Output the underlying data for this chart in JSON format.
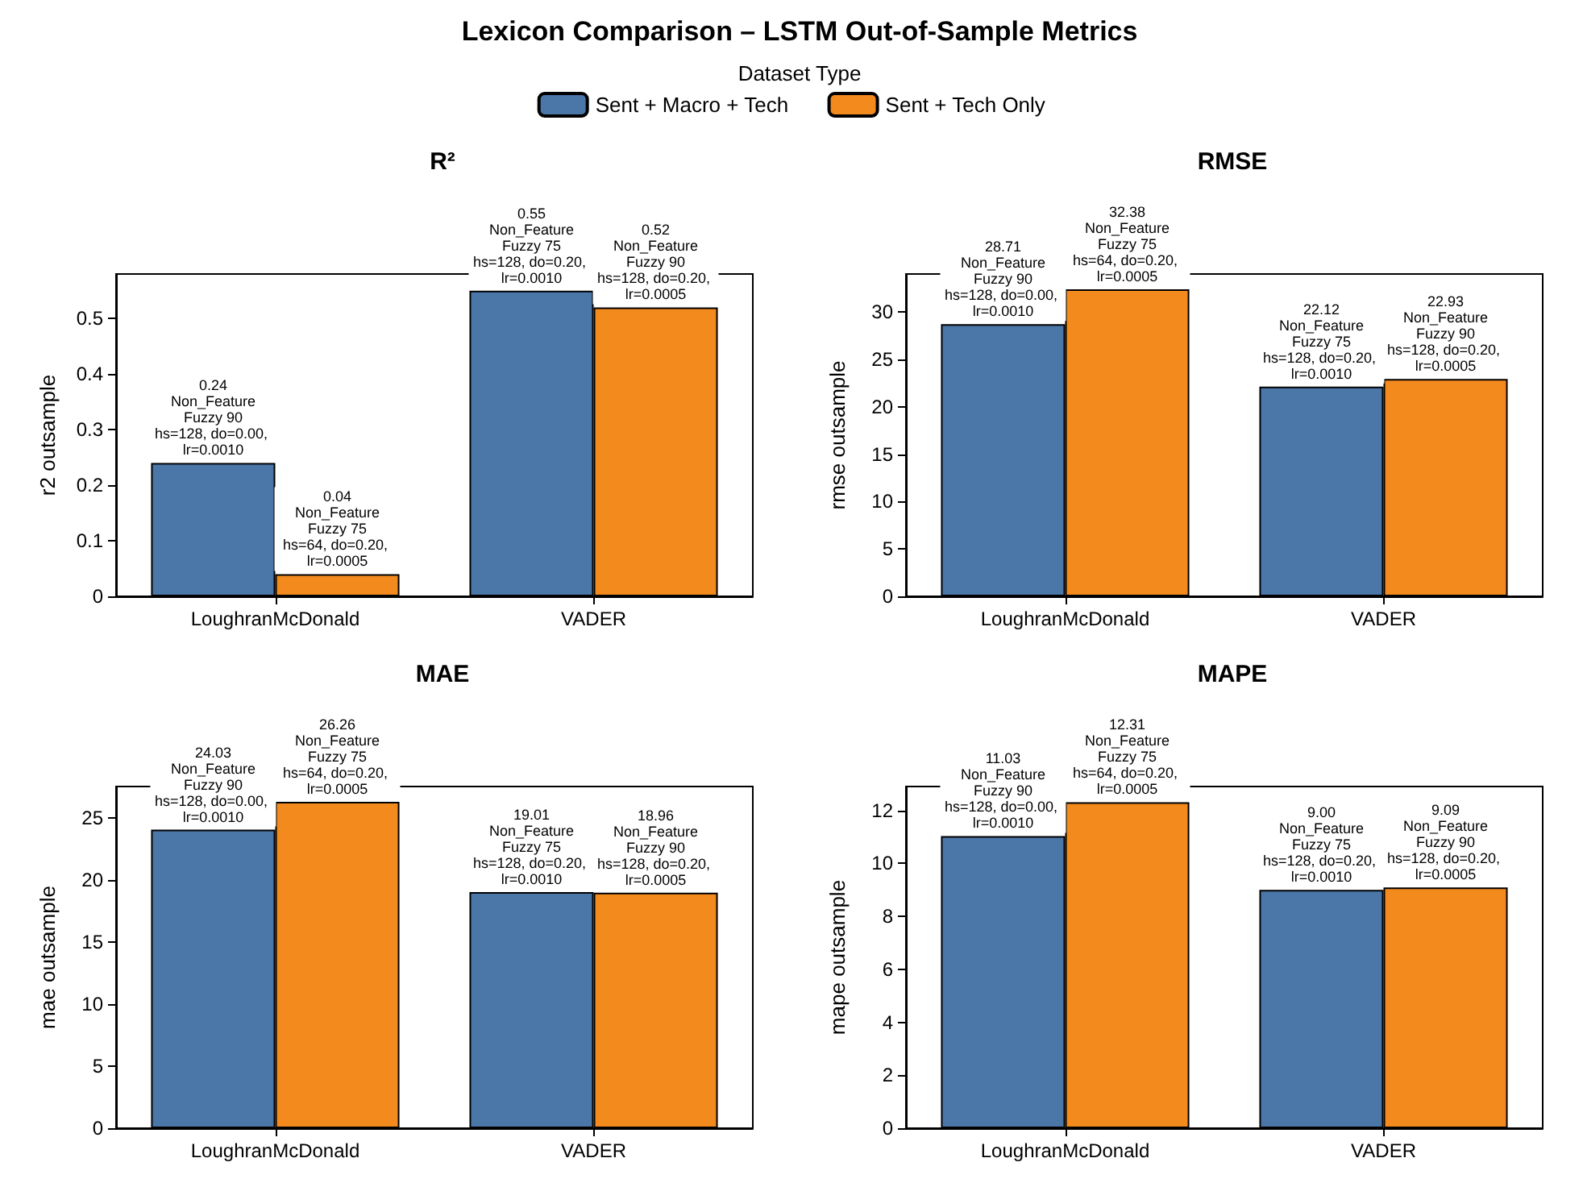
{
  "chart_data": [
    {
      "type": "bar",
      "title": "R²",
      "annotations": [
        "Lexicon Comparison – LSTM Out-of-Sample Metrics"
      ],
      "legend": "top",
      "legend_title": "Dataset Type",
      "grid": false,
      "ylabel": "r2 outsample",
      "categories": [
        "LoughranMcDonald",
        "VADER"
      ],
      "ylim": [
        0,
        0.58
      ],
      "yticks": [
        0.0,
        0.1,
        0.2,
        0.3,
        0.4,
        0.5
      ],
      "series": [
        {
          "name": "Sent + Macro + Tech",
          "color": "#4a76a8",
          "values": [
            0.24,
            0.55
          ],
          "value_labels": [
            "0.24\nNon_Feature\nFuzzy 90\nhs=128, do=0.00, lr=0.0010",
            "0.55\nNon_Feature\nFuzzy 75\nhs=128, do=0.20, lr=0.0010"
          ]
        },
        {
          "name": "Sent + Tech Only",
          "color": "#f28a1e",
          "values": [
            0.04,
            0.52
          ],
          "value_labels": [
            "0.04\nNon_Feature\nFuzzy 75\nhs=64, do=0.20, lr=0.0005",
            "0.52\nNon_Feature\nFuzzy 90\nhs=128, do=0.20, lr=0.0005"
          ]
        }
      ]
    },
    {
      "type": "bar",
      "title": "RMSE",
      "grid": false,
      "ylabel": "rmse outsample",
      "categories": [
        "LoughranMcDonald",
        "VADER"
      ],
      "ylim": [
        0,
        34
      ],
      "yticks": [
        0,
        5,
        10,
        15,
        20,
        25,
        30
      ],
      "series": [
        {
          "name": "Sent + Macro + Tech",
          "color": "#4a76a8",
          "values": [
            28.71,
            22.12
          ],
          "value_labels": [
            "28.71\nNon_Feature\nFuzzy 90\nhs=128, do=0.00, lr=0.0010",
            "22.12\nNon_Feature\nFuzzy 75\nhs=128, do=0.20, lr=0.0010"
          ]
        },
        {
          "name": "Sent + Tech Only",
          "color": "#f28a1e",
          "values": [
            32.38,
            22.93
          ],
          "value_labels": [
            "32.38\nNon_Feature\nFuzzy 75\nhs=64, do=0.20, lr=0.0005",
            "22.93\nNon_Feature\nFuzzy 90\nhs=128, do=0.20, lr=0.0005"
          ]
        }
      ]
    },
    {
      "type": "bar",
      "title": "MAE",
      "grid": false,
      "ylabel": "mae outsample",
      "categories": [
        "LoughranMcDonald",
        "VADER"
      ],
      "ylim": [
        0,
        27.5
      ],
      "yticks": [
        0,
        5,
        10,
        15,
        20,
        25
      ],
      "series": [
        {
          "name": "Sent + Macro + Tech",
          "color": "#4a76a8",
          "values": [
            24.03,
            19.01
          ],
          "value_labels": [
            "24.03\nNon_Feature\nFuzzy 90\nhs=128, do=0.00, lr=0.0010",
            "19.01\nNon_Feature\nFuzzy 75\nhs=128, do=0.20, lr=0.0010"
          ]
        },
        {
          "name": "Sent + Tech Only",
          "color": "#f28a1e",
          "values": [
            26.26,
            18.96
          ],
          "value_labels": [
            "26.26\nNon_Feature\nFuzzy 75\nhs=64, do=0.20, lr=0.0005",
            "18.96\nNon_Feature\nFuzzy 90\nhs=128, do=0.20, lr=0.0005"
          ]
        }
      ]
    },
    {
      "type": "bar",
      "title": "MAPE",
      "grid": false,
      "ylabel": "mape outsample",
      "categories": [
        "LoughranMcDonald",
        "VADER"
      ],
      "ylim": [
        0,
        12.9
      ],
      "yticks": [
        0,
        2,
        4,
        6,
        8,
        10,
        12
      ],
      "series": [
        {
          "name": "Sent + Macro + Tech",
          "color": "#4a76a8",
          "values": [
            11.03,
            9.0
          ],
          "value_labels": [
            "11.03\nNon_Feature\nFuzzy 90\nhs=128, do=0.00, lr=0.0010",
            "9.00\nNon_Feature\nFuzzy 75\nhs=128, do=0.20, lr=0.0010"
          ]
        },
        {
          "name": "Sent + Tech Only",
          "color": "#f28a1e",
          "values": [
            12.31,
            9.09
          ],
          "value_labels": [
            "12.31\nNon_Feature\nFuzzy 75\nhs=64, do=0.20, lr=0.0005",
            "9.09\nNon_Feature\nFuzzy 90\nhs=128, do=0.20, lr=0.0005"
          ]
        }
      ]
    }
  ]
}
